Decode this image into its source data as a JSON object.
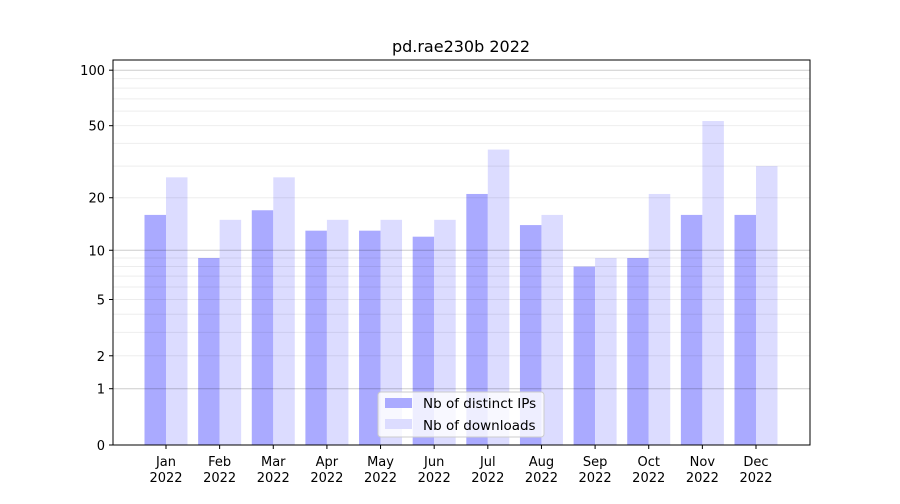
{
  "chart_data": {
    "type": "bar",
    "title": "pd.rae230b 2022",
    "xlabel": "",
    "ylabel": "",
    "yscale": "log(1+x)",
    "ylim": [
      0,
      110
    ],
    "yticks": [
      0,
      1,
      2,
      5,
      10,
      20,
      50,
      100
    ],
    "grid": true,
    "legend_position": "bottom-center",
    "categories": [
      "Jan\n2022",
      "Feb\n2022",
      "Mar\n2022",
      "Apr\n2022",
      "May\n2022",
      "Jun\n2022",
      "Jul\n2022",
      "Aug\n2022",
      "Sep\n2022",
      "Oct\n2022",
      "Nov\n2022",
      "Dec\n2022"
    ],
    "series": [
      {
        "name": "Nb of distinct IPs",
        "color": "#aaaaff",
        "values": [
          16,
          9,
          17,
          13,
          13,
          12,
          21,
          14,
          8,
          9,
          16,
          16
        ]
      },
      {
        "name": "Nb of downloads",
        "color": "#dcdcff",
        "values": [
          26,
          15,
          26,
          15,
          15,
          15,
          37,
          16,
          9,
          21,
          53,
          30
        ]
      }
    ]
  }
}
